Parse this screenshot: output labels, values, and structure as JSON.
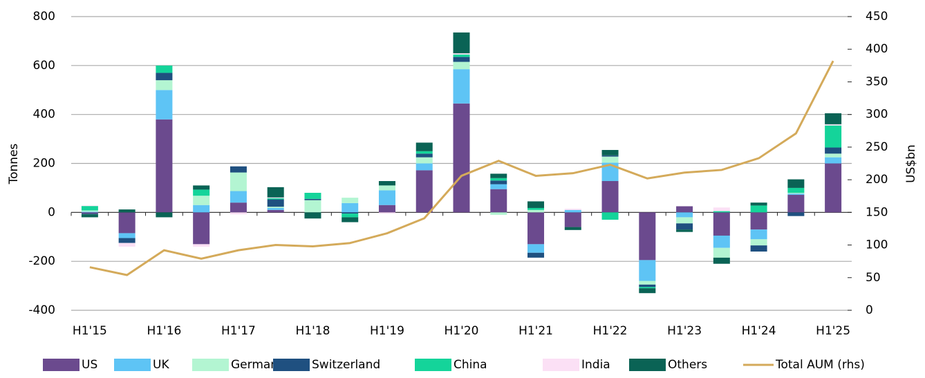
{
  "chart_data": {
    "type": "bar",
    "stacked": true,
    "categories": [
      "H1'15",
      null,
      "H1'16",
      null,
      "H1'17",
      null,
      "H1'18",
      null,
      "H1'19",
      null,
      "H1'20",
      null,
      "H1'21",
      null,
      "H1'22",
      null,
      "H1'23",
      null,
      "H1'24",
      null,
      "H1'25"
    ],
    "ylabel": "Tonnes",
    "y2label": "US$bn",
    "ylim": [
      -400,
      800
    ],
    "yticks": [
      -400,
      -200,
      0,
      200,
      400,
      600,
      800
    ],
    "y2lim": [
      0,
      450
    ],
    "y2ticks": [
      0,
      50,
      100,
      150,
      200,
      250,
      300,
      350,
      400,
      450
    ],
    "grid": true,
    "legend": "bottom",
    "series": [
      {
        "name": "US",
        "color": "#6b4a8e",
        "values": [
          -5,
          -85,
          380,
          -130,
          40,
          10,
          0,
          0,
          30,
          172,
          445,
          95,
          -130,
          -60,
          128,
          -195,
          25,
          -95,
          -70,
          72,
          200
        ]
      },
      {
        "name": "UK",
        "color": "#5ec4f5",
        "values": [
          3,
          -20,
          120,
          30,
          47,
          8,
          0,
          38,
          60,
          28,
          140,
          20,
          -35,
          10,
          75,
          -85,
          -20,
          -50,
          -40,
          5,
          25
        ]
      },
      {
        "name": "Germany",
        "color": "#b3f5d2",
        "values": [
          5,
          0,
          40,
          38,
          76,
          5,
          50,
          22,
          20,
          25,
          30,
          -10,
          10,
          0,
          25,
          -15,
          -25,
          -40,
          -25,
          3,
          15
        ]
      },
      {
        "name": "Switzerland",
        "color": "#1f5080",
        "values": [
          -3,
          -20,
          30,
          0,
          25,
          30,
          5,
          -5,
          0,
          15,
          20,
          15,
          -20,
          0,
          5,
          -10,
          -25,
          0,
          -25,
          -15,
          25
        ]
      },
      {
        "name": "China",
        "color": "#14d49a",
        "values": [
          18,
          0,
          30,
          25,
          0,
          5,
          25,
          -15,
          0,
          10,
          10,
          10,
          8,
          0,
          -30,
          -5,
          0,
          5,
          28,
          20,
          90
        ]
      },
      {
        "name": "India",
        "color": "#fbe0f5",
        "values": [
          2,
          -15,
          0,
          -10,
          -8,
          3,
          0,
          0,
          -5,
          0,
          5,
          0,
          0,
          5,
          0,
          0,
          0,
          15,
          0,
          0,
          5
        ]
      },
      {
        "name": "Others",
        "color": "#0a6355",
        "values": [
          -12,
          12,
          -20,
          17,
          0,
          42,
          -25,
          -20,
          18,
          35,
          85,
          18,
          27,
          -12,
          22,
          -20,
          -10,
          -25,
          12,
          35,
          45
        ]
      },
      {
        "name": "Total AUM (rhs)",
        "color": "#d4aa5a",
        "type": "line",
        "axis": "y2",
        "values": [
          66,
          54,
          92,
          79,
          92,
          100,
          98,
          103,
          118,
          141,
          206,
          229,
          206,
          210,
          223,
          202,
          211,
          215,
          233,
          271,
          382
        ]
      }
    ]
  }
}
